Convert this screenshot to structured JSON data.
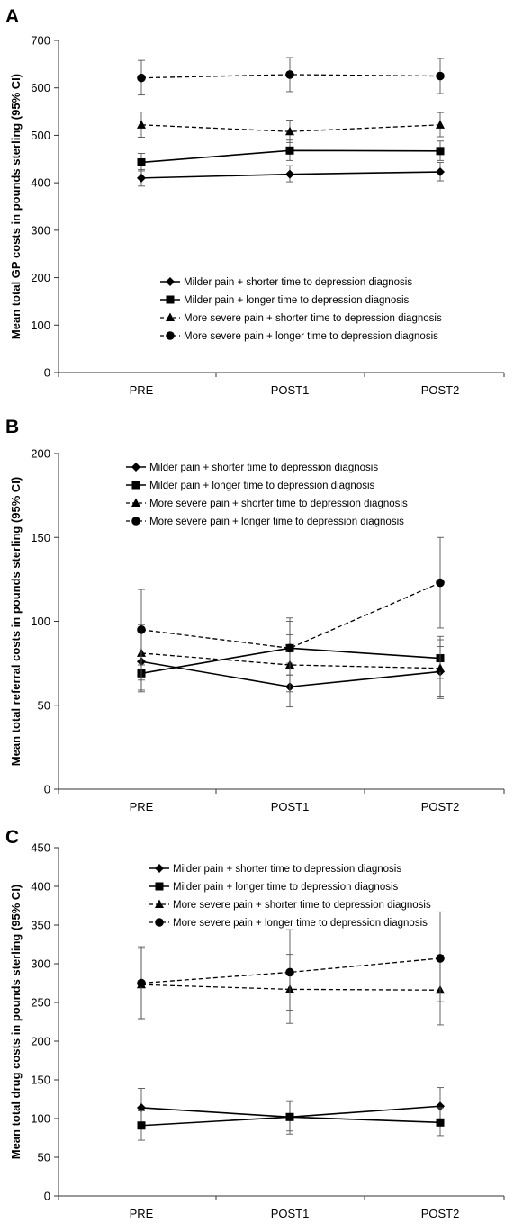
{
  "chart_data": [
    {
      "panel": "A",
      "type": "line",
      "ylabel": "Mean total GP costs in pounds sterling (95% CI)",
      "xlabel": "",
      "categories": [
        "PRE",
        "POST1",
        "POST2"
      ],
      "ylim": [
        0,
        700
      ],
      "yticks": [
        0,
        100,
        200,
        300,
        400,
        500,
        600,
        700
      ],
      "grid": false,
      "legend_position": "bottom-center",
      "series": [
        {
          "name": "Milder pain + shorter time to depression diagnosis",
          "marker": "diamond",
          "dash": false,
          "values": [
            410,
            418,
            423
          ],
          "lower": [
            393,
            402,
            404
          ],
          "upper": [
            428,
            436,
            443
          ]
        },
        {
          "name": "Milder pain + longer time to depression diagnosis",
          "marker": "square",
          "dash": false,
          "values": [
            443,
            468,
            467
          ],
          "lower": [
            425,
            447,
            447
          ],
          "upper": [
            462,
            490,
            488
          ]
        },
        {
          "name": "More severe pain + shorter time to depression diagnosis",
          "marker": "triangle",
          "dash": true,
          "values": [
            522,
            508,
            522
          ],
          "lower": [
            496,
            485,
            497
          ],
          "upper": [
            549,
            532,
            548
          ]
        },
        {
          "name": "More severe pain + longer time to depression diagnosis",
          "marker": "circle",
          "dash": true,
          "values": [
            621,
            628,
            625
          ],
          "lower": [
            585,
            592,
            588
          ],
          "upper": [
            658,
            664,
            662
          ]
        }
      ]
    },
    {
      "panel": "B",
      "type": "line",
      "ylabel": "Mean total referral costs in pounds sterling (95% CI)",
      "xlabel": "",
      "categories": [
        "PRE",
        "POST1",
        "POST2"
      ],
      "ylim": [
        0,
        200
      ],
      "yticks": [
        0,
        50,
        100,
        150,
        200
      ],
      "grid": false,
      "legend_position": "top-center",
      "series": [
        {
          "name": "Milder pain + shorter time to depression diagnosis",
          "marker": "diamond",
          "dash": false,
          "values": [
            76,
            61,
            70
          ],
          "lower": [
            59,
            49,
            55
          ],
          "upper": [
            95,
            75,
            85
          ]
        },
        {
          "name": "Milder pain + longer time to depression diagnosis",
          "marker": "square",
          "dash": false,
          "values": [
            69,
            84,
            78
          ],
          "lower": [
            58,
            68,
            66
          ],
          "upper": [
            80,
            100,
            91
          ]
        },
        {
          "name": "More severe pain + shorter time to depression diagnosis",
          "marker": "triangle",
          "dash": true,
          "values": [
            81,
            74,
            72
          ],
          "lower": [
            65,
            58,
            54
          ],
          "upper": [
            98,
            92,
            89
          ]
        },
        {
          "name": "More severe pain + longer time to depression diagnosis",
          "marker": "circle",
          "dash": true,
          "values": [
            95,
            84,
            123
          ],
          "lower": [
            74,
            68,
            96
          ],
          "upper": [
            119,
            102,
            150
          ]
        }
      ]
    },
    {
      "panel": "C",
      "type": "line",
      "ylabel": "Mean total drug costs in pounds sterling (95% CI)",
      "xlabel": "",
      "categories": [
        "PRE",
        "POST1",
        "POST2"
      ],
      "ylim": [
        0,
        450
      ],
      "yticks": [
        0,
        50,
        100,
        150,
        200,
        250,
        300,
        350,
        400,
        450
      ],
      "grid": false,
      "legend_position": "top-center",
      "series": [
        {
          "name": "Milder pain + shorter time to depression diagnosis",
          "marker": "diamond",
          "dash": false,
          "values": [
            114,
            102,
            116
          ],
          "lower": [
            95,
            84,
            95
          ],
          "upper": [
            139,
            122,
            140
          ]
        },
        {
          "name": "Milder pain + longer time to depression diagnosis",
          "marker": "square",
          "dash": false,
          "values": [
            91,
            102,
            95
          ],
          "lower": [
            72,
            80,
            78
          ],
          "upper": [
            110,
            123,
            114
          ]
        },
        {
          "name": "More severe pain + shorter time to depression diagnosis",
          "marker": "triangle",
          "dash": true,
          "values": [
            273,
            267,
            266
          ],
          "lower": [
            229,
            223,
            221
          ],
          "upper": [
            320,
            312,
            311
          ]
        },
        {
          "name": "More severe pain + longer time to depression diagnosis",
          "marker": "circle",
          "dash": true,
          "values": [
            275,
            289,
            307
          ],
          "lower": [
            229,
            240,
            251
          ],
          "upper": [
            322,
            344,
            367
          ]
        }
      ]
    }
  ]
}
